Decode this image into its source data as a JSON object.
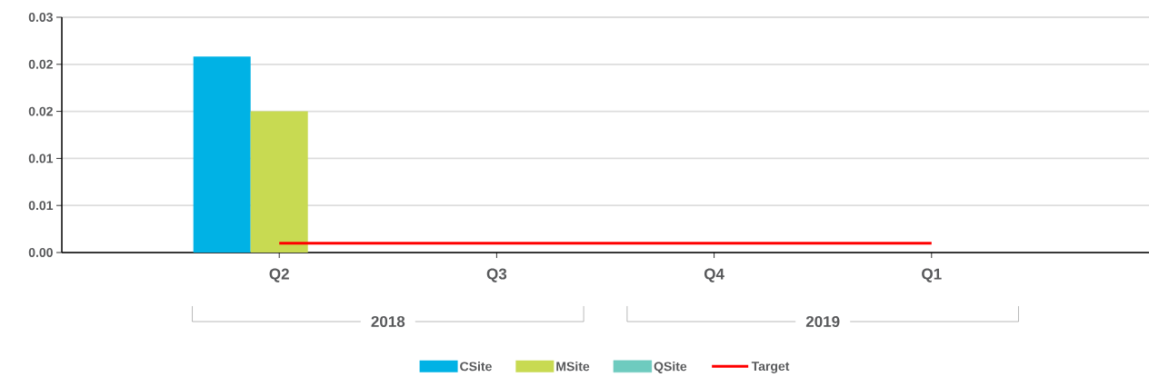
{
  "chart_data": {
    "type": "bar",
    "categories": [
      "Q2",
      "Q3",
      "Q4",
      "Q1"
    ],
    "annotations": [
      "2018",
      "2019"
    ],
    "series": [
      {
        "name": "CSite",
        "color": "#00b2e5",
        "values": [
          0.025,
          null,
          null,
          null
        ]
      },
      {
        "name": "MSite",
        "color": "#c8da52",
        "values": [
          0.018,
          null,
          null,
          null
        ]
      },
      {
        "name": "QSite",
        "color": "#6ecbbf",
        "values": [
          null,
          null,
          null,
          null
        ]
      },
      {
        "name": "Target",
        "type": "line",
        "color": "#ff0000",
        "values": [
          0.0012,
          0.0012,
          0.0012,
          0.0012
        ]
      }
    ],
    "ylim": [
      0,
      0.03
    ],
    "yticks": [
      {
        "value": 0,
        "label": "0.00"
      },
      {
        "value": 0.006,
        "label": "0.01"
      },
      {
        "value": 0.012,
        "label": "0.01"
      },
      {
        "value": 0.018,
        "label": "0.02"
      },
      {
        "value": 0.024,
        "label": "0.02"
      },
      0.03
    ],
    "grid": "y",
    "legend": "bottom"
  }
}
